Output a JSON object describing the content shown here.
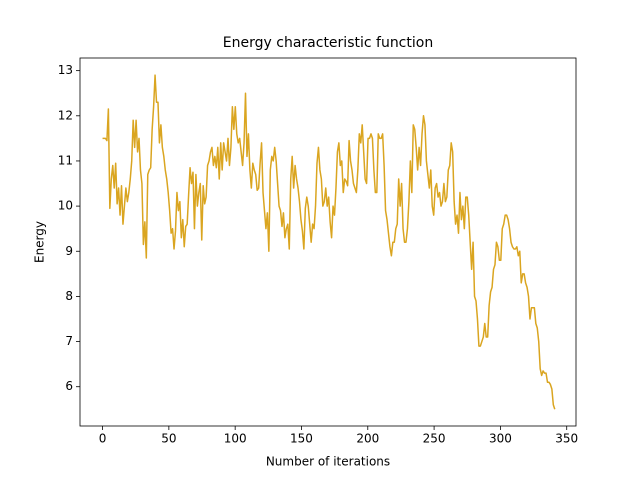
{
  "chart_data": {
    "type": "line",
    "title": "Energy characteristic function",
    "xlabel": "Number of iterations",
    "ylabel": "Energy",
    "xlim": [
      -17,
      357
    ],
    "ylim": [
      5.13,
      13.28
    ],
    "xticks": [
      0,
      50,
      100,
      150,
      200,
      250,
      300,
      350
    ],
    "yticks": [
      6,
      7,
      8,
      9,
      10,
      11,
      12,
      13
    ],
    "x": [
      0,
      1.1,
      2.2,
      3.3,
      4.4,
      5.5,
      6.6,
      7.7,
      8.8,
      9.9,
      11,
      12.1,
      13.2,
      14.3,
      15.4,
      16.5,
      17.6,
      18.7,
      19.8,
      20.9,
      22,
      23.1,
      24.2,
      25.3,
      26.4,
      27.5,
      28.6,
      29.7,
      30.8,
      31.9,
      33,
      34.1,
      35.2,
      36.3,
      37.4,
      38.5,
      39.6,
      40.7,
      41.8,
      42.9,
      44,
      45.1,
      46.2,
      47.3,
      48.4,
      49.5,
      50.6,
      51.7,
      52.8,
      53.9,
      55,
      56.1,
      57.2,
      58.3,
      59.4,
      60.5,
      61.6,
      62.7,
      63.8,
      64.9,
      66,
      67.1,
      68.2,
      69.3,
      70.4,
      71.5,
      72.6,
      73.7,
      74.8,
      75.9,
      77,
      78.1,
      79.2,
      80.3,
      81.4,
      82.5,
      83.6,
      84.7,
      85.8,
      86.9,
      88,
      89.1,
      90.2,
      91.3,
      92.4,
      93.5,
      94.6,
      95.7,
      96.8,
      97.9,
      99,
      100.1,
      101.2,
      102.3,
      103.4,
      104.5,
      105.6,
      106.7,
      107.8,
      108.9,
      110,
      111.1,
      112.2,
      113.3,
      114.4,
      115.5,
      116.6,
      117.7,
      118.8,
      119.9,
      121,
      122.1,
      123.2,
      124.3,
      125.4,
      126.5,
      127.6,
      128.7,
      129.8,
      130.9,
      132,
      133.1,
      134.2,
      135.3,
      136.4,
      137.5,
      138.6,
      139.7,
      140.8,
      141.9,
      143,
      144.1,
      145.2,
      146.3,
      147.4,
      148.5,
      149.6,
      150.7,
      151.8,
      152.9,
      154,
      155.1,
      156.2,
      157.3,
      158.4,
      159.5,
      160.6,
      161.7,
      162.8,
      163.9,
      165,
      166.1,
      167.2,
      168.3,
      169.4,
      170.5,
      171.6,
      172.7,
      173.8,
      174.9,
      176,
      177.1,
      178.2,
      179.3,
      180.4,
      181.5,
      182.6,
      183.7,
      184.8,
      185.9,
      187,
      188.1,
      189.2,
      190.3,
      191.4,
      192.5,
      193.6,
      194.7,
      195.8,
      196.9,
      198,
      199.1,
      200.2,
      201.3,
      202.4,
      203.5,
      204.6,
      205.7,
      206.8,
      207.9,
      209,
      210.1,
      211.2,
      212.3,
      213.4,
      214.5,
      215.6,
      216.7,
      217.8,
      218.9,
      220,
      221.1,
      222.2,
      223.3,
      224.4,
      225.5,
      226.6,
      227.7,
      228.8,
      229.9,
      231,
      232.1,
      233.2,
      234.3,
      235.4,
      236.5,
      237.6,
      238.7,
      239.8,
      240.9,
      242,
      243.1,
      244.2,
      245.3,
      246.4,
      247.5,
      248.6,
      249.7,
      250.8,
      251.9,
      253,
      254.1,
      255.2,
      256.3,
      257.4,
      258.5,
      259.6,
      260.7,
      261.8,
      262.9,
      264,
      265.1,
      266.2,
      267.3,
      268.4,
      269.5,
      270.6,
      271.7,
      272.8,
      273.9,
      275,
      276.1,
      277.2,
      278.3,
      279.4,
      280.5,
      281.6,
      282.7,
      283.8,
      284.9,
      286,
      287.1,
      288.2,
      289.3,
      290.4,
      291.5,
      292.6,
      293.7,
      294.8,
      295.9,
      297,
      298.1,
      299.2,
      300.3,
      301.4,
      302.5,
      303.6,
      304.7,
      305.8,
      306.9,
      308,
      309.1,
      310.2,
      311.3,
      312.4,
      313.5,
      314.6,
      315.7,
      316.8,
      317.9,
      319,
      320.1,
      321.2,
      322.3,
      323.4,
      324.5,
      325.6,
      326.7,
      327.8,
      328.9,
      330,
      331.1,
      332.2,
      333.3,
      334.4,
      335.5,
      336.6,
      337.7,
      338.8,
      339.9,
      341
    ],
    "series": [
      {
        "color": "#daa520",
        "values": [
          11.5,
          11.5,
          11.5,
          11.45,
          12.15,
          9.95,
          10.6,
          10.9,
          10.4,
          10.95,
          10.05,
          10.4,
          9.8,
          10.45,
          9.6,
          10.0,
          10.4,
          10.1,
          10.3,
          10.6,
          11.0,
          11.9,
          11.3,
          11.9,
          11.2,
          11.5,
          10.8,
          10.5,
          9.15,
          9.65,
          8.85,
          10.7,
          10.8,
          10.85,
          11.7,
          12.2,
          12.9,
          12.3,
          12.3,
          11.4,
          11.8,
          11.3,
          11.1,
          10.8,
          10.6,
          10.3,
          9.9,
          9.4,
          9.5,
          9.05,
          9.45,
          10.3,
          9.9,
          10.1,
          9.3,
          9.7,
          9.1,
          9.55,
          9.6,
          10.25,
          10.85,
          10.5,
          10.75,
          9.5,
          10.7,
          10.0,
          10.3,
          10.5,
          9.25,
          10.45,
          10.05,
          10.2,
          10.9,
          11.0,
          11.2,
          11.3,
          10.9,
          11.1,
          10.85,
          11.3,
          10.6,
          11.4,
          10.8,
          11.4,
          11.2,
          11.0,
          11.5,
          10.9,
          11.3,
          12.2,
          11.7,
          12.2,
          11.6,
          11.4,
          11.5,
          11.2,
          10.9,
          11.4,
          12.5,
          11.1,
          11.6,
          10.8,
          10.4,
          10.95,
          10.8,
          10.7,
          10.35,
          10.4,
          10.95,
          11.4,
          10.3,
          9.9,
          9.5,
          9.85,
          9.0,
          10.8,
          11.1,
          11.0,
          11.3,
          11.0,
          10.5,
          10.0,
          9.9,
          9.55,
          9.85,
          9.3,
          9.5,
          9.6,
          9.05,
          10.6,
          11.1,
          10.4,
          10.9,
          10.6,
          10.4,
          10.1,
          9.7,
          9.45,
          9.05,
          9.95,
          10.2,
          10.0,
          9.6,
          9.2,
          9.6,
          9.5,
          10.0,
          10.95,
          11.3,
          10.8,
          10.6,
          10.0,
          10.1,
          10.4,
          10.0,
          10.2,
          9.65,
          9.3,
          10.0,
          9.8,
          10.4,
          11.2,
          11.4,
          10.9,
          11.0,
          10.3,
          10.6,
          10.55,
          10.45,
          11.45,
          11.0,
          10.8,
          10.5,
          10.4,
          10.3,
          10.8,
          11.6,
          11.4,
          11.8,
          11.2,
          10.6,
          10.5,
          11.5,
          11.5,
          11.6,
          11.5,
          10.8,
          10.3,
          10.3,
          11.6,
          11.5,
          11.5,
          11.6,
          10.9,
          9.9,
          9.7,
          9.4,
          9.1,
          8.9,
          9.2,
          9.2,
          9.5,
          9.6,
          10.6,
          10.0,
          10.5,
          9.5,
          9.2,
          9.2,
          9.5,
          10.1,
          11.0,
          10.3,
          11.8,
          11.7,
          11.3,
          10.8,
          11.3,
          10.9,
          11.6,
          12.0,
          11.8,
          11.0,
          10.7,
          10.4,
          10.8,
          10.0,
          9.8,
          10.4,
          10.5,
          10.2,
          10.3,
          10.0,
          10.1,
          10.5,
          10.1,
          10.2,
          10.8,
          10.9,
          11.4,
          11.2,
          10.1,
          9.6,
          9.8,
          9.4,
          10.3,
          9.7,
          10.0,
          9.5,
          10.2,
          10.2,
          9.8,
          9.2,
          8.6,
          9.2,
          8.0,
          7.9,
          7.5,
          6.9,
          6.9,
          7.0,
          7.1,
          7.4,
          7.1,
          7.1,
          7.8,
          8.1,
          8.2,
          8.6,
          8.7,
          9.2,
          9.1,
          8.8,
          8.8,
          9.5,
          9.6,
          9.8,
          9.8,
          9.7,
          9.5,
          9.2,
          9.1,
          9.05,
          9.05,
          9.1,
          8.9,
          9.0,
          8.3,
          8.5,
          8.5,
          8.3,
          8.2,
          8.0,
          7.5,
          7.75,
          7.75,
          7.75,
          7.4,
          7.3,
          7.0,
          6.4,
          6.25,
          6.35,
          6.3,
          6.3,
          6.1,
          6.1,
          6.05,
          5.95,
          5.6,
          5.5
        ]
      }
    ]
  }
}
